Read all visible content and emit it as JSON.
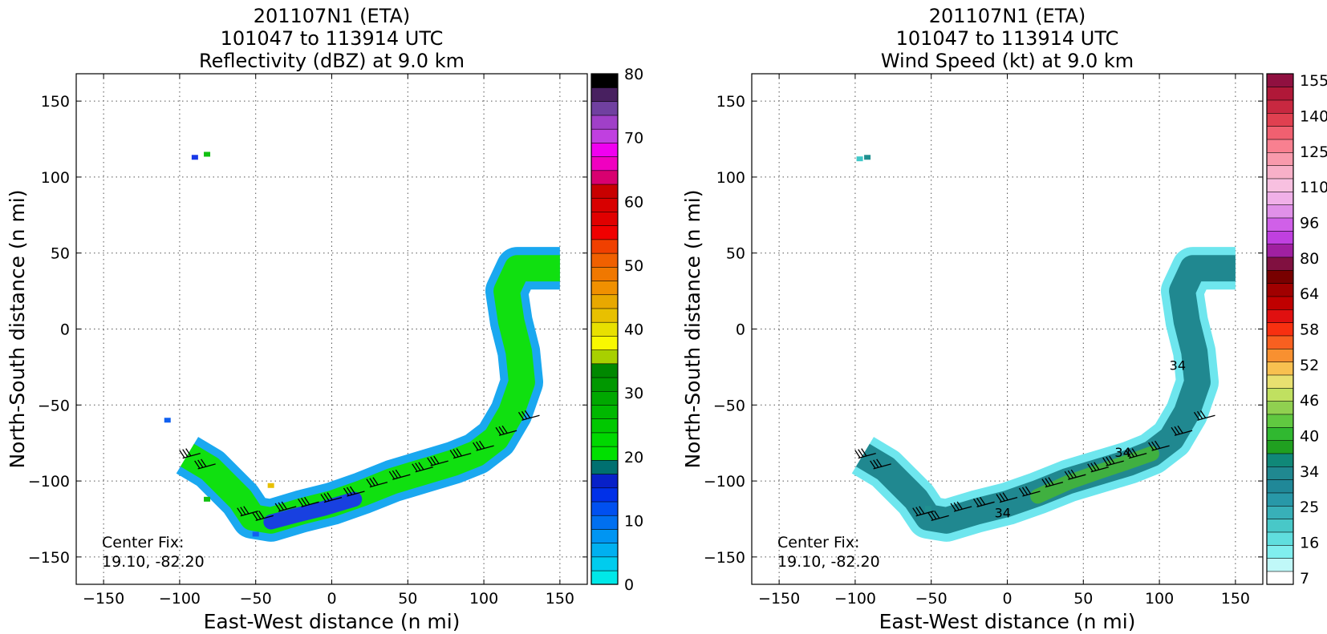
{
  "chart_data": [
    {
      "type": "heatmap",
      "title_lines": [
        "201107N1 (ETA)",
        "101047 to 113914 UTC",
        "Reflectivity (dBZ) at 9.0 km"
      ],
      "xlabel": "East-West distance (n mi)",
      "ylabel": "North-South distance (n mi)",
      "xlim": [
        -168,
        168
      ],
      "ylim": [
        -168,
        168
      ],
      "xticks": [
        -150,
        -100,
        -50,
        0,
        50,
        100,
        150
      ],
      "yticks": [
        -150,
        -100,
        -50,
        0,
        50,
        100,
        150
      ],
      "grid": true,
      "annotation_lines": [
        "Center Fix:",
        "19.10, -82.20"
      ],
      "colorbar": {
        "min": 0,
        "max": 80,
        "tick_labels": [
          "0",
          "10",
          "20",
          "30",
          "40",
          "50",
          "60",
          "70",
          "80"
        ],
        "colors": [
          "#00e8e8",
          "#00ccee",
          "#00b0f0",
          "#0095f2",
          "#0070f0",
          "#0050f0",
          "#0030e8",
          "#0820c8",
          "#007070",
          "#00e000",
          "#00d800",
          "#00c800",
          "#00b800",
          "#00a800",
          "#009800",
          "#008800",
          "#a8d000",
          "#f8f800",
          "#e8e000",
          "#e8c000",
          "#e8a800",
          "#f09000",
          "#f07800",
          "#f06000",
          "#f04000",
          "#f00000",
          "#e00000",
          "#d80000",
          "#c80000",
          "#d80070",
          "#f000c0",
          "#f000f0",
          "#c040e0",
          "#a040c8",
          "#7040a0",
          "#482060",
          "#000000"
        ]
      },
      "echo_band": [
        [
          -95,
          -83
        ],
        [
          -80,
          -92
        ],
        [
          -70,
          -102
        ],
        [
          -60,
          -112
        ],
        [
          -52,
          -124
        ],
        [
          -40,
          -126
        ],
        [
          -20,
          -120
        ],
        [
          0,
          -115
        ],
        [
          20,
          -108
        ],
        [
          40,
          -100
        ],
        [
          60,
          -94
        ],
        [
          80,
          -88
        ],
        [
          95,
          -82
        ],
        [
          108,
          -72
        ],
        [
          118,
          -55
        ],
        [
          125,
          -35
        ],
        [
          123,
          -15
        ],
        [
          118,
          5
        ],
        [
          115,
          25
        ],
        [
          122,
          40
        ],
        [
          150,
          40
        ]
      ],
      "echo_band_width": 14,
      "strong_core": [
        [
          -40,
          -127
        ],
        [
          -25,
          -123
        ],
        [
          -5,
          -118
        ],
        [
          15,
          -112
        ]
      ],
      "specks": [
        [
          -90,
          113,
          "#1838e8"
        ],
        [
          -82,
          115,
          "#10c010"
        ],
        [
          -40,
          -103,
          "#e8c000"
        ],
        [
          -108,
          -60,
          "#1060f0"
        ],
        [
          -50,
          -135,
          "#1060f0"
        ],
        [
          -82,
          -112,
          "#10c010"
        ]
      ],
      "barbs_x": [
        -98,
        -88,
        -60,
        -50,
        -35,
        -20,
        -5,
        10,
        25,
        40,
        55,
        65,
        80,
        95,
        110,
        125
      ],
      "barbs_y": [
        -85,
        -92,
        -123,
        -126,
        -120,
        -117,
        -114,
        -110,
        -104,
        -99,
        -94,
        -90,
        -85,
        -80,
        -70,
        -60
      ]
    },
    {
      "type": "heatmap",
      "title_lines": [
        "201107N1 (ETA)",
        "101047 to 113914 UTC",
        "Wind Speed (kt) at 9.0 km"
      ],
      "xlabel": "East-West distance (n mi)",
      "ylabel": "North-South distance (n mi)",
      "xlim": [
        -168,
        168
      ],
      "ylim": [
        -168,
        168
      ],
      "xticks": [
        -150,
        -100,
        -50,
        0,
        50,
        100,
        150
      ],
      "yticks": [
        -150,
        -100,
        -50,
        0,
        50,
        100,
        150
      ],
      "grid": true,
      "annotation_lines": [
        "Center Fix:",
        "19.10, -82.20"
      ],
      "contour_labels": [
        [
          -3,
          -124,
          "34"
        ],
        [
          76,
          -84,
          "34"
        ],
        [
          112,
          -27,
          "34"
        ]
      ],
      "colorbar": {
        "tick_labels": [
          "7",
          "16",
          "25",
          "34",
          "40",
          "46",
          "52",
          "58",
          "64",
          "80",
          "96",
          "110",
          "125",
          "140",
          "155"
        ],
        "colors": [
          "#ffffff",
          "#c0f8f8",
          "#80eeee",
          "#60dede",
          "#48c8c8",
          "#38b0b8",
          "#2898a8",
          "#208898",
          "#208890",
          "#108878",
          "#20a020",
          "#30b830",
          "#60c840",
          "#90d050",
          "#c0e060",
          "#e8e070",
          "#f8c050",
          "#f89030",
          "#f86020",
          "#f83010",
          "#e01010",
          "#c00000",
          "#a00000",
          "#780000",
          "#801040",
          "#a020a0",
          "#c040e0",
          "#d060e8",
          "#e090e8",
          "#f0b0e8",
          "#f8c0e0",
          "#f8b0c8",
          "#f89aac",
          "#f88090",
          "#f06070",
          "#e04050",
          "#c82840",
          "#b01838",
          "#901040"
        ]
      },
      "echo_band": [
        [
          -95,
          -83
        ],
        [
          -80,
          -92
        ],
        [
          -70,
          -102
        ],
        [
          -60,
          -112
        ],
        [
          -52,
          -124
        ],
        [
          -40,
          -126
        ],
        [
          -20,
          -120
        ],
        [
          0,
          -115
        ],
        [
          20,
          -108
        ],
        [
          40,
          -100
        ],
        [
          60,
          -94
        ],
        [
          80,
          -88
        ],
        [
          95,
          -82
        ],
        [
          108,
          -72
        ],
        [
          118,
          -55
        ],
        [
          125,
          -35
        ],
        [
          123,
          -15
        ],
        [
          118,
          5
        ],
        [
          115,
          25
        ],
        [
          122,
          40
        ],
        [
          150,
          40
        ]
      ],
      "echo_band_width": 14,
      "strong_core": [
        [
          20,
          -110
        ],
        [
          40,
          -101
        ],
        [
          60,
          -94
        ],
        [
          78,
          -88
        ],
        [
          95,
          -82
        ]
      ],
      "specks": [
        [
          -97,
          112,
          "#40c8c8"
        ],
        [
          -92,
          113,
          "#209090"
        ],
        [
          -52,
          -118,
          "#209090"
        ]
      ],
      "barbs_x": [
        -98,
        -88,
        -60,
        -50,
        -35,
        -20,
        -5,
        10,
        25,
        40,
        55,
        65,
        80,
        95,
        110,
        125
      ],
      "barbs_y": [
        -85,
        -92,
        -123,
        -126,
        -120,
        -117,
        -114,
        -110,
        -104,
        -99,
        -94,
        -90,
        -85,
        -80,
        -70,
        -60
      ]
    }
  ]
}
